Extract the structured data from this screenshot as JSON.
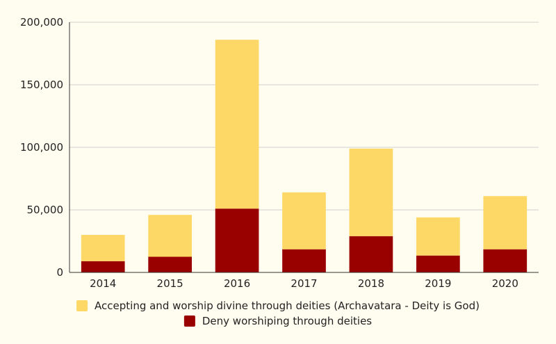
{
  "chart_data": {
    "type": "bar",
    "stacked": true,
    "categories": [
      "2014",
      "2015",
      "2016",
      "2017",
      "2018",
      "2019",
      "2020"
    ],
    "series": [
      {
        "name": "Deny worshiping through deities",
        "color": "#990000",
        "values": [
          9000,
          12500,
          51000,
          18500,
          29000,
          13500,
          18500
        ]
      },
      {
        "name": "Accepting and worship divine through deities (Archavatara - Deity is God)",
        "color": "#fdd866",
        "values": [
          21000,
          33500,
          135000,
          45500,
          70000,
          30500,
          42500
        ]
      }
    ],
    "ylim": [
      0,
      200000
    ],
    "yticks": [
      0,
      50000,
      100000,
      150000,
      200000
    ],
    "ytick_labels": [
      "0",
      "50,000",
      "100,000",
      "150,000",
      "200,000"
    ],
    "grid": true,
    "legend_position": "bottom",
    "legend_order": [
      1,
      0
    ],
    "background": "#fffdef",
    "gridline_color": "#cfcfcf",
    "axis_color": "#333333"
  }
}
